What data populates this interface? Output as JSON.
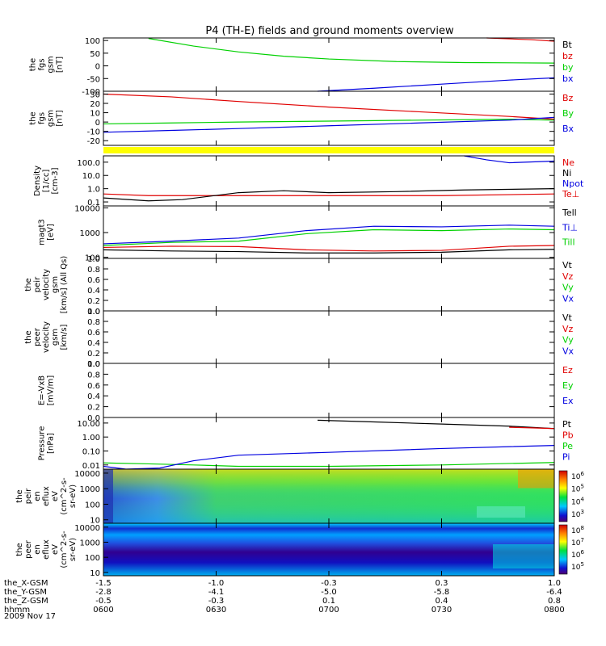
{
  "title": "P4 (TH-E) fields and ground moments overview",
  "date": "2009 Nov 17",
  "colors": {
    "red": "#e00000",
    "green": "#00d000",
    "blue": "#0000e0",
    "black": "#000000",
    "yellow": "#ffff00"
  },
  "x_axis": {
    "rows": [
      {
        "label": "the_X-GSM",
        "values": [
          "-1.5",
          "-1.0",
          "-0.3",
          "0.3",
          "1.0"
        ]
      },
      {
        "label": "the_Y-GSM",
        "values": [
          "-2.8",
          "-4.1",
          "-5.0",
          "-5.8",
          "-6.4"
        ]
      },
      {
        "label": "the_Z-GSM",
        "values": [
          "-0.5",
          "-0.3",
          "0.1",
          "0.4",
          "0.8"
        ]
      },
      {
        "label": "hhmm",
        "values": [
          "0600",
          "0630",
          "0700",
          "0730",
          "0800"
        ]
      }
    ]
  },
  "chart_data": [
    {
      "type": "line",
      "id": "p1",
      "ylabel": [
        "the",
        "fgs",
        "gsm",
        "[nT]"
      ],
      "ylim": [
        -100,
        110
      ],
      "yticks": [
        "100",
        "50",
        "0",
        "-50",
        "-100"
      ],
      "ytick_values": [
        100,
        50,
        0,
        -50,
        -100
      ],
      "legend": [
        {
          "name": "Bt",
          "color": "black"
        },
        {
          "name": "bz",
          "color": "red"
        },
        {
          "name": "by",
          "color": "green"
        },
        {
          "name": "bx",
          "color": "blue"
        }
      ],
      "series": [
        {
          "name": "bz",
          "color": "red",
          "x": [
            1.7,
            1.9,
            2.0
          ],
          "y": [
            110,
            103,
            97
          ]
        },
        {
          "name": "by",
          "color": "green",
          "x": [
            0.2,
            0.4,
            0.6,
            0.8,
            1.0,
            1.3,
            1.6,
            2.0
          ],
          "y": [
            108,
            78,
            55,
            38,
            27,
            17,
            13,
            11
          ]
        },
        {
          "name": "bx",
          "color": "blue",
          "x": [
            0.95,
            1.2,
            1.5,
            1.8,
            2.0
          ],
          "y": [
            -100,
            -88,
            -72,
            -56,
            -47
          ]
        }
      ]
    },
    {
      "type": "line",
      "id": "p2",
      "ylabel": [
        "the",
        "fgs",
        "gsm",
        "[nT]"
      ],
      "ylim": [
        -25,
        33
      ],
      "yticks": [
        "30",
        "20",
        "10",
        "0",
        "-10",
        "-20"
      ],
      "ytick_values": [
        30,
        20,
        10,
        0,
        -10,
        -20
      ],
      "legend": [
        {
          "name": "Bz",
          "color": "red"
        },
        {
          "name": "By",
          "color": "green"
        },
        {
          "name": "Bx",
          "color": "blue"
        }
      ],
      "series": [
        {
          "name": "Bz",
          "color": "red",
          "x": [
            0,
            0.3,
            0.6,
            1.0,
            1.4,
            1.8,
            2.0
          ],
          "y": [
            30,
            27,
            22,
            16,
            11,
            6,
            3
          ]
        },
        {
          "name": "By",
          "color": "green",
          "x": [
            0,
            0.3,
            0.6,
            1.0,
            1.4,
            1.8,
            2.0
          ],
          "y": [
            -2,
            -1,
            0,
            1,
            2,
            3,
            2
          ]
        },
        {
          "name": "Bx",
          "color": "blue",
          "x": [
            0,
            0.3,
            0.6,
            1.0,
            1.4,
            1.8,
            2.0
          ],
          "y": [
            -11,
            -9,
            -7,
            -4,
            -1,
            2,
            5
          ]
        }
      ]
    },
    {
      "type": "line",
      "id": "p3",
      "log": true,
      "ylabel": [
        "Density",
        "[1/cc]",
        "[cm-3]"
      ],
      "ylim": [
        0.05,
        300
      ],
      "yticks": [
        "100.0",
        "10.0",
        "1.0",
        "0.1"
      ],
      "ytick_values": [
        100,
        10,
        1,
        0.1
      ],
      "legend": [
        {
          "name": "Ne",
          "color": "red"
        },
        {
          "name": "Ni",
          "color": "black"
        },
        {
          "name": "Npot",
          "color": "blue"
        },
        {
          "name": "Te⊥",
          "color": "red"
        }
      ],
      "series": [
        {
          "name": "Ne",
          "color": "red",
          "x": [
            0,
            0.2,
            0.5,
            1.0,
            1.5,
            2.0
          ],
          "y": [
            0.4,
            0.3,
            0.3,
            0.3,
            0.3,
            0.4
          ]
        },
        {
          "name": "Ni",
          "color": "black",
          "x": [
            0,
            0.2,
            0.35,
            0.6,
            0.8,
            1.0,
            1.3,
            1.6,
            2.0
          ],
          "y": [
            0.2,
            0.12,
            0.15,
            0.5,
            0.7,
            0.5,
            0.6,
            0.8,
            1.0
          ]
        },
        {
          "name": "Npot",
          "color": "blue",
          "x": [
            1.6,
            1.7,
            1.8,
            2.0
          ],
          "y": [
            300,
            150,
            90,
            120
          ]
        }
      ]
    },
    {
      "type": "line",
      "id": "p4",
      "log": true,
      "ylabel": [
        "magt3",
        "[eV]"
      ],
      "ylim": [
        90,
        12000
      ],
      "yticks": [
        "10000",
        "1000",
        "100"
      ],
      "ytick_values": [
        10000,
        1000,
        100
      ],
      "legend": [
        {
          "name": "Tell",
          "color": "black"
        },
        {
          "name": "Ti⊥",
          "color": "blue"
        },
        {
          "name": "Till",
          "color": "green"
        }
      ],
      "series": [
        {
          "name": "Ti⊥",
          "color": "blue",
          "x": [
            0,
            0.3,
            0.6,
            0.9,
            1.2,
            1.5,
            1.8,
            2.0
          ],
          "y": [
            350,
            450,
            600,
            1200,
            1800,
            1700,
            2000,
            1800
          ]
        },
        {
          "name": "Till",
          "color": "green",
          "x": [
            0,
            0.3,
            0.6,
            0.9,
            1.2,
            1.5,
            1.8,
            2.0
          ],
          "y": [
            300,
            400,
            450,
            900,
            1300,
            1200,
            1400,
            1300
          ]
        },
        {
          "name": "Te",
          "color": "red",
          "x": [
            0,
            0.3,
            0.6,
            0.9,
            1.2,
            1.5,
            1.8,
            2.0
          ],
          "y": [
            250,
            280,
            270,
            200,
            180,
            190,
            280,
            300
          ]
        },
        {
          "name": "Tell",
          "color": "black",
          "x": [
            0,
            0.3,
            0.6,
            0.9,
            1.2,
            1.5,
            1.8,
            2.0
          ],
          "y": [
            200,
            180,
            170,
            150,
            150,
            160,
            200,
            210
          ]
        }
      ]
    },
    {
      "type": "line",
      "id": "p5",
      "ylabel": [
        "the",
        "peir",
        "velocity",
        "gsm",
        "[km/s] (All Qs)"
      ],
      "ylim": [
        0,
        1
      ],
      "yticks": [
        "1.0",
        "0.8",
        "0.6",
        "0.4",
        "0.2",
        "0.0"
      ],
      "ytick_values": [
        1,
        0.8,
        0.6,
        0.4,
        0.2,
        0
      ],
      "legend": [
        {
          "name": "Vt",
          "color": "black"
        },
        {
          "name": "Vz",
          "color": "red"
        },
        {
          "name": "Vy",
          "color": "green"
        },
        {
          "name": "Vx",
          "color": "blue"
        }
      ],
      "series": []
    },
    {
      "type": "line",
      "id": "p6",
      "ylabel": [
        "the",
        "peer",
        "velocity",
        "gsm",
        "[km/s]"
      ],
      "ylim": [
        0,
        1
      ],
      "yticks": [
        "1.0",
        "0.8",
        "0.6",
        "0.4",
        "0.2",
        "0.0"
      ],
      "ytick_values": [
        1,
        0.8,
        0.6,
        0.4,
        0.2,
        0
      ],
      "legend": [
        {
          "name": "Vt",
          "color": "black"
        },
        {
          "name": "Vz",
          "color": "red"
        },
        {
          "name": "Vy",
          "color": "green"
        },
        {
          "name": "Vx",
          "color": "blue"
        }
      ],
      "series": []
    },
    {
      "type": "line",
      "id": "p7",
      "ylabel": [
        "E=-VxB",
        "[mV/m]"
      ],
      "ylim": [
        0,
        1
      ],
      "yticks": [
        "1.0",
        "0.8",
        "0.6",
        "0.4",
        "0.2",
        "0.0"
      ],
      "ytick_values": [
        1,
        0.8,
        0.6,
        0.4,
        0.2,
        0
      ],
      "legend": [
        {
          "name": "Ez",
          "color": "red"
        },
        {
          "name": "Ey",
          "color": "green"
        },
        {
          "name": "Ex",
          "color": "blue"
        }
      ],
      "series": []
    },
    {
      "type": "line",
      "id": "p8",
      "log": true,
      "ylabel": [
        "Pressure",
        "[nPa]"
      ],
      "ylim": [
        0.005,
        25
      ],
      "yticks": [
        "10.00",
        "1.00",
        "0.10",
        "0.01"
      ],
      "ytick_values": [
        10,
        1,
        0.1,
        0.01
      ],
      "legend": [
        {
          "name": "Pt",
          "color": "black"
        },
        {
          "name": "Pb",
          "color": "red"
        },
        {
          "name": "Pe",
          "color": "green"
        },
        {
          "name": "Pi",
          "color": "blue"
        }
      ],
      "series": [
        {
          "name": "Pt",
          "color": "black",
          "x": [
            0.95,
            1.2,
            1.5,
            1.8,
            2.0
          ],
          "y": [
            16,
            12,
            8.5,
            6,
            4
          ]
        },
        {
          "name": "Pb",
          "color": "red",
          "x": [
            1.8,
            1.9,
            2.0
          ],
          "y": [
            5,
            4.5,
            4
          ]
        },
        {
          "name": "Pe",
          "color": "green",
          "x": [
            0,
            0.2,
            0.4,
            0.6,
            1.0,
            1.5,
            2.0
          ],
          "y": [
            0.014,
            0.012,
            0.01,
            0.008,
            0.008,
            0.01,
            0.015
          ]
        },
        {
          "name": "Pi",
          "color": "blue",
          "x": [
            0,
            0.1,
            0.25,
            0.4,
            0.6,
            1.0,
            1.5,
            2.0
          ],
          "y": [
            0.008,
            0.005,
            0.006,
            0.02,
            0.05,
            0.08,
            0.15,
            0.25
          ]
        }
      ]
    },
    {
      "type": "heatmap",
      "id": "p9",
      "ylabel": [
        "the",
        "peir",
        "en",
        "eflux",
        "eV",
        "(cm^2-s-",
        "sr-eV)"
      ],
      "yticks": [
        "10000",
        "1000",
        "100",
        "10"
      ],
      "colorbar": [
        "10^6",
        "10^5",
        "10^4",
        "10^3"
      ]
    },
    {
      "type": "heatmap",
      "id": "p10",
      "ylabel": [
        "the",
        "peer",
        "en",
        "eflux",
        "eV",
        "(cm^2-s-",
        "sr-eV)"
      ],
      "yticks": [
        "10000",
        "1000",
        "100",
        "10"
      ],
      "colorbar": [
        "10^8",
        "10^7",
        "10^6",
        "10^5"
      ]
    }
  ]
}
